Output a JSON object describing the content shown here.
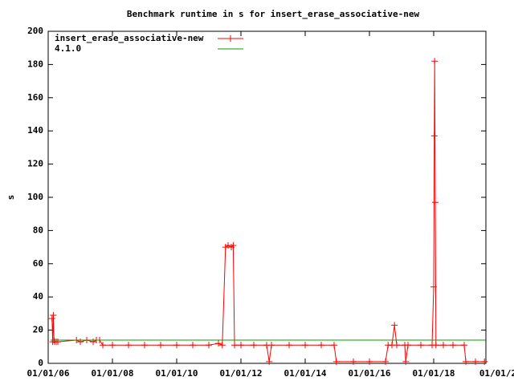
{
  "chart_data": {
    "type": "line",
    "title": "Benchmark runtime in s for insert_erase_associative-new",
    "ylabel": "s",
    "xlim": [
      2006,
      2019.625
    ],
    "xticks": [
      {
        "value": 2006,
        "label": "01/01/06"
      },
      {
        "value": 2008,
        "label": "01/01/08"
      },
      {
        "value": 2010,
        "label": "01/01/10"
      },
      {
        "value": 2012,
        "label": "01/01/12"
      },
      {
        "value": 2014,
        "label": "01/01/14"
      },
      {
        "value": 2016,
        "label": "01/01/16"
      },
      {
        "value": 2018,
        "label": "01/01/18"
      },
      {
        "value": 2020,
        "label": "01/01/2"
      }
    ],
    "ylim": [
      0,
      200
    ],
    "yticks": [
      0,
      20,
      40,
      60,
      80,
      100,
      120,
      140,
      160,
      180,
      200
    ],
    "legend": "top-left",
    "series": [
      {
        "name": "insert_erase_associative-new",
        "color": "#ff0000",
        "markers": true,
        "x": [
          2006.12,
          2006.14,
          2006.16,
          2006.18,
          2006.2,
          2006.25,
          2006.3,
          2006.88,
          2007.0,
          2007.2,
          2007.4,
          2007.5,
          2007.6,
          2007.7,
          2008.0,
          2008.5,
          2009.0,
          2009.5,
          2010.0,
          2010.5,
          2011.0,
          2011.3,
          2011.42,
          2011.52,
          2011.6,
          2011.7,
          2011.76,
          2011.8,
          2012.0,
          2012.4,
          2012.8,
          2012.88,
          2012.95,
          2013.5,
          2014.0,
          2014.5,
          2014.9,
          2014.97,
          2015.5,
          2016.0,
          2016.5,
          2016.58,
          2016.7,
          2016.78,
          2016.85,
          2017.1,
          2017.13,
          2017.2,
          2017.6,
          2017.95,
          2018.0,
          2018.02,
          2018.03,
          2018.05,
          2018.07,
          2018.3,
          2018.6,
          2018.95,
          2019.0,
          2019.3,
          2019.58
        ],
        "values": [
          27,
          13,
          29,
          14,
          13,
          13,
          13,
          14,
          13,
          14,
          13,
          14,
          14,
          11,
          11,
          11,
          11,
          11,
          11,
          11,
          11,
          12,
          11,
          70,
          71,
          70,
          71,
          11,
          11,
          11,
          11,
          1,
          11,
          11,
          11,
          11,
          11,
          1,
          1,
          1,
          1,
          11,
          11,
          23,
          11,
          11,
          1,
          11,
          11,
          11,
          46,
          137,
          182,
          97,
          11,
          11,
          11,
          11,
          1,
          1,
          1
        ]
      },
      {
        "name": "4.1.0",
        "color": "#00a000",
        "markers": false,
        "x": [
          2006.12,
          2019.62
        ],
        "values": [
          14,
          14
        ]
      }
    ]
  }
}
